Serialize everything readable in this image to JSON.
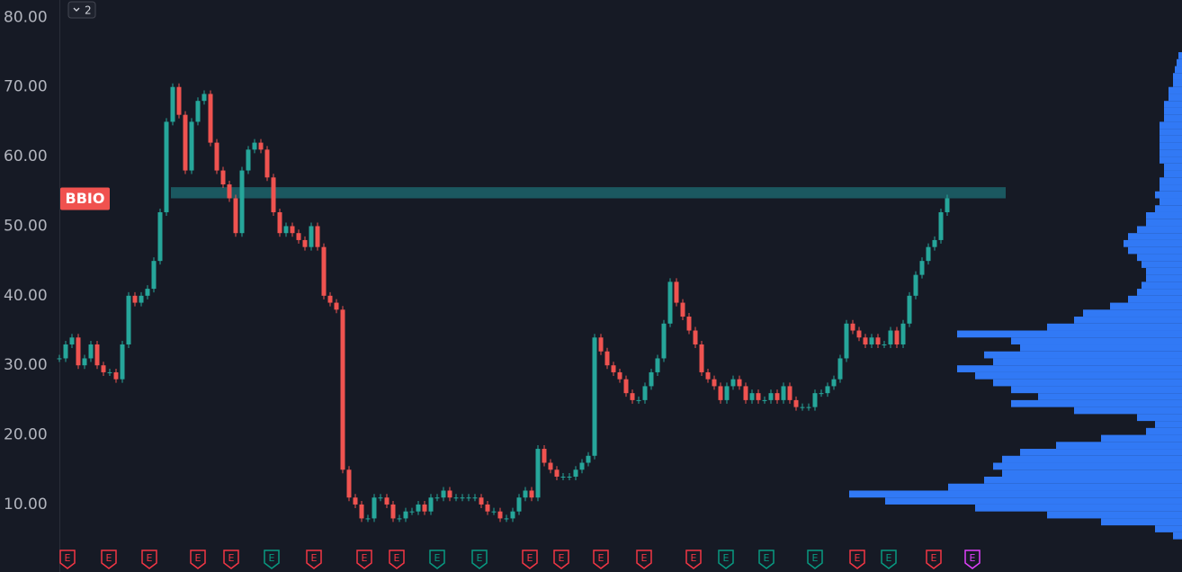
{
  "chart_data": {
    "type": "candlestick",
    "ylim": [
      0.3,
      82.5
    ],
    "yticks": [
      {
        "value": 10,
        "label": "10.00"
      },
      {
        "value": 20,
        "label": "20.00"
      },
      {
        "value": 30,
        "label": "30.00"
      },
      {
        "value": 40,
        "label": "40.00"
      },
      {
        "value": 50,
        "label": "50.00"
      },
      {
        "value": 60,
        "label": "60.00"
      },
      {
        "value": 70,
        "label": "70.00"
      },
      {
        "value": 80,
        "label": "80.00"
      }
    ],
    "ticker": "BBIO",
    "ticker_color": "#f0524f",
    "series_toggle": "2",
    "up_color": "#26a69a",
    "down_color": "#ef5350",
    "close": [
      31,
      33,
      34,
      30,
      31,
      33,
      30,
      29,
      29,
      28,
      33,
      40,
      39,
      40,
      41,
      45,
      52,
      65,
      70,
      66,
      58,
      65,
      68,
      69,
      62,
      58,
      56,
      54,
      49,
      58,
      61,
      62,
      61,
      57,
      52,
      49,
      50,
      49,
      48,
      47,
      50,
      47,
      40,
      39,
      38,
      15,
      11,
      10,
      8,
      8,
      11,
      11,
      10,
      8,
      8,
      9,
      9,
      10,
      9,
      11,
      11,
      12,
      11,
      11,
      11,
      11,
      11,
      10,
      9,
      9,
      8,
      8,
      9,
      11,
      12,
      11,
      18,
      16,
      15,
      14,
      14,
      14,
      15,
      16,
      17,
      34,
      32,
      30,
      29,
      28,
      26,
      25,
      25,
      27,
      29,
      31,
      36,
      42,
      39,
      37,
      35,
      33,
      29,
      28,
      27,
      25,
      27,
      28,
      27,
      25,
      26,
      25,
      25,
      26,
      25,
      27,
      25,
      24,
      24,
      24,
      26,
      26,
      27,
      28,
      31,
      36,
      35,
      34,
      33,
      34,
      33,
      33,
      35,
      33,
      36,
      40,
      43,
      45,
      47,
      48,
      52,
      54
    ],
    "zone": {
      "low": 54,
      "high": 55.6,
      "color": "#1b5860"
    },
    "volume_profile": {
      "color": "#3179f5",
      "xlim": [
        0,
        400
      ],
      "bins": [
        5,
        6,
        7,
        8,
        9,
        10,
        11,
        12,
        13,
        14,
        15,
        16,
        17,
        18,
        19,
        20,
        21,
        22,
        23,
        24,
        25,
        26,
        27,
        28,
        29,
        30,
        31,
        32,
        33,
        34,
        35,
        36,
        37,
        38,
        39,
        40,
        41,
        42,
        43,
        44,
        45,
        46,
        47,
        48,
        49,
        50,
        51,
        52,
        53,
        54,
        55,
        56,
        57,
        58,
        59,
        60,
        61,
        62,
        63,
        64,
        65,
        66,
        67,
        68,
        69,
        70,
        71,
        72,
        73,
        74,
        75
      ],
      "values": [
        10,
        30,
        90,
        150,
        230,
        330,
        370,
        260,
        220,
        200,
        210,
        200,
        180,
        140,
        90,
        40,
        30,
        50,
        120,
        190,
        160,
        190,
        210,
        230,
        250,
        210,
        220,
        180,
        190,
        250,
        150,
        120,
        110,
        80,
        60,
        50,
        45,
        40,
        40,
        45,
        50,
        60,
        65,
        60,
        50,
        40,
        40,
        30,
        25,
        30,
        25,
        25,
        20,
        20,
        25,
        25,
        25,
        25,
        25,
        25,
        20,
        20,
        20,
        15,
        15,
        10,
        10,
        8,
        6,
        4
      ]
    },
    "earnings": [
      {
        "label": "E",
        "color": "#f23645"
      },
      {
        "label": "E",
        "color": "#f23645"
      },
      {
        "label": "E",
        "color": "#f23645"
      },
      {
        "label": "E",
        "color": "#f23645"
      },
      {
        "label": "E",
        "color": "#f23645"
      },
      {
        "label": "E",
        "color": "#089981"
      },
      {
        "label": "E",
        "color": "#f23645"
      },
      {
        "label": "E",
        "color": "#f23645"
      },
      {
        "label": "E",
        "color": "#f23645"
      },
      {
        "label": "E",
        "color": "#089981"
      },
      {
        "label": "E",
        "color": "#089981"
      },
      {
        "label": "E",
        "color": "#f23645"
      },
      {
        "label": "E",
        "color": "#f23645"
      },
      {
        "label": "E",
        "color": "#f23645"
      },
      {
        "label": "E",
        "color": "#f23645"
      },
      {
        "label": "E",
        "color": "#f23645"
      },
      {
        "label": "E",
        "color": "#089981"
      },
      {
        "label": "E",
        "color": "#089981"
      },
      {
        "label": "E",
        "color": "#089981"
      },
      {
        "label": "E",
        "color": "#f23645"
      },
      {
        "label": "E",
        "color": "#089981"
      },
      {
        "label": "E",
        "color": "#f23645"
      },
      {
        "label": "E",
        "color": "#e040fb"
      }
    ]
  }
}
